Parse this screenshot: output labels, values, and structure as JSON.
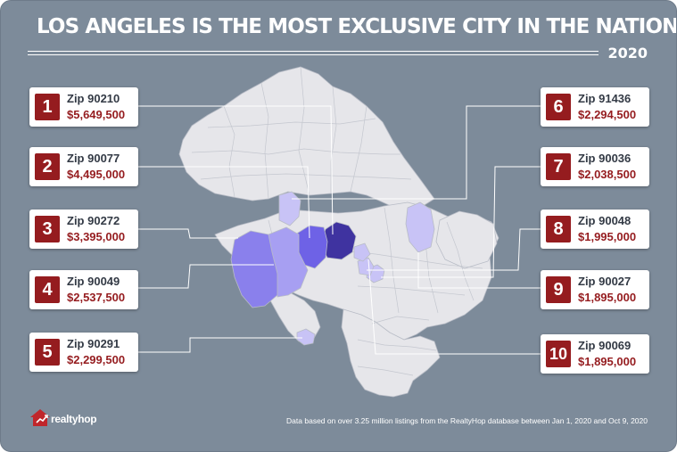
{
  "title": "LOS ANGELES IS THE MOST EXCLUSIVE CITY IN THE NATION",
  "year": "2020",
  "brand": "realtyhop",
  "footnote": "Data based on over 3.25 million listings from the RealtyHop database between Jan 1, 2020 and Oct 9, 2020",
  "colors": {
    "background": "#7d8b9a",
    "land": "#e6e6ea",
    "rank_badge": "#951c1f",
    "rank1": "#3f33a0",
    "rank2": "#6e62e6",
    "rank3": "#8a80ec",
    "rank4": "#a79ff2",
    "rank5_10": "#c8c3f6"
  },
  "rankings": [
    {
      "rank": "1",
      "zip": "Zip 90210",
      "price": "$5,649,500"
    },
    {
      "rank": "2",
      "zip": "Zip 90077",
      "price": "$4,495,000"
    },
    {
      "rank": "3",
      "zip": "Zip 90272",
      "price": "$3,395,000"
    },
    {
      "rank": "4",
      "zip": "Zip 90049",
      "price": "$2,537,500"
    },
    {
      "rank": "5",
      "zip": "Zip 90291",
      "price": "$2,299,500"
    },
    {
      "rank": "6",
      "zip": "Zip 91436",
      "price": "$2,294,500"
    },
    {
      "rank": "7",
      "zip": "Zip 90036",
      "price": "$2,038,500"
    },
    {
      "rank": "8",
      "zip": "Zip 90048",
      "price": "$1,995,000"
    },
    {
      "rank": "9",
      "zip": "Zip 90027",
      "price": "$1,895,000"
    },
    {
      "rank": "10",
      "zip": "Zip 90069",
      "price": "$1,895,000"
    }
  ]
}
